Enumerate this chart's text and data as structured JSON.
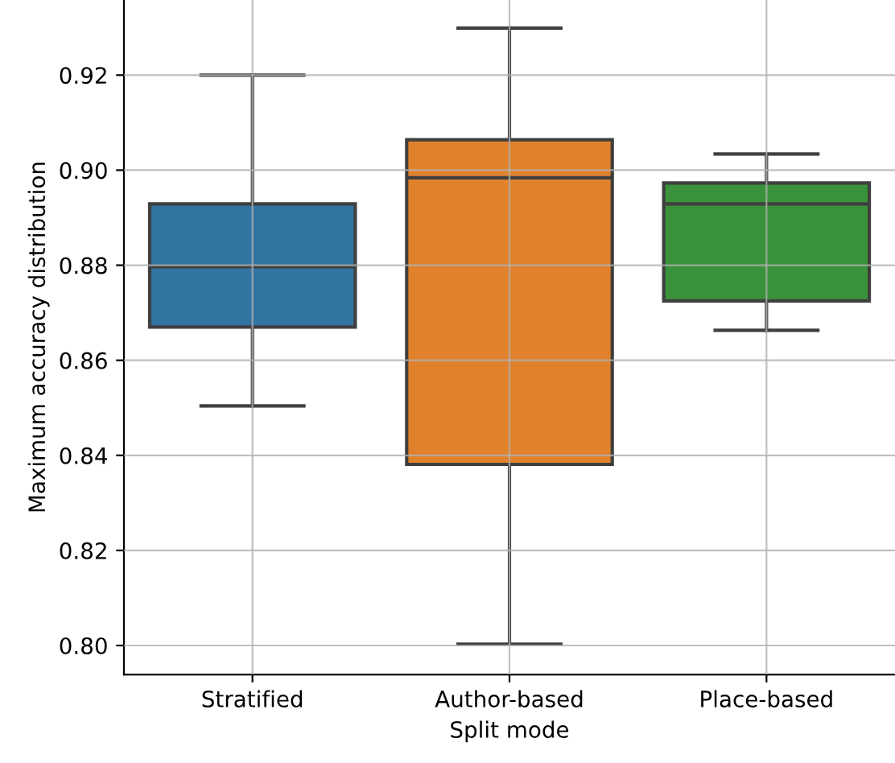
{
  "chart_data": {
    "type": "box",
    "xlabel": "Split mode",
    "ylabel": "Maximum accuracy distribution",
    "categories": [
      "Stratified",
      "Author-based",
      "Place-based"
    ],
    "colors": [
      "#3274a1",
      "#e1812c",
      "#3a923a"
    ],
    "boxes": [
      {
        "low": 0.8504,
        "q1": 0.867,
        "median": 0.8797,
        "q3": 0.8929,
        "high": 0.92
      },
      {
        "low": 0.8003,
        "q1": 0.8381,
        "median": 0.8984,
        "q3": 0.9064,
        "high": 0.9299
      },
      {
        "low": 0.8663,
        "q1": 0.8725,
        "median": 0.8929,
        "q3": 0.8973,
        "high": 0.9034
      }
    ],
    "ylim": [
      0.7939,
      0.9358
    ],
    "yticks": [
      {
        "value": 0.8,
        "label": "0.80"
      },
      {
        "value": 0.82,
        "label": "0.82"
      },
      {
        "value": 0.84,
        "label": "0.84"
      },
      {
        "value": 0.86,
        "label": "0.86"
      },
      {
        "value": 0.88,
        "label": "0.88"
      },
      {
        "value": 0.9,
        "label": "0.90"
      },
      {
        "value": 0.92,
        "label": "0.92"
      }
    ],
    "grid": true
  }
}
